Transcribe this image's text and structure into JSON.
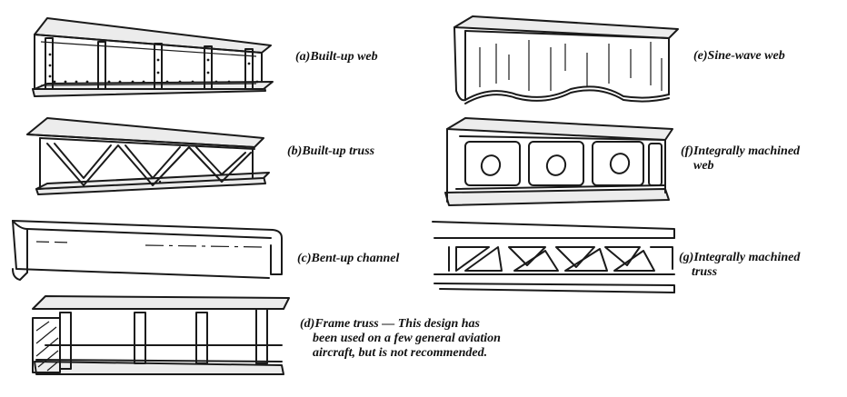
{
  "captions": {
    "a": "(a)Built-up web",
    "b": "(b)Built-up truss",
    "c": "(c)Bent-up channel",
    "d_line1": "(d)Frame truss — This design has",
    "d_line2": "been used on a few general aviation",
    "d_line3": "aircraft, but is not recommended.",
    "e": "(e)Sine-wave web",
    "f_line1": "(f)Integrally machined",
    "f_line2": "web",
    "g_line1": "(g)Integrally machined",
    "g_line2": "truss"
  },
  "colors": {
    "ink": "#1a1a1a",
    "background": "#ffffff"
  }
}
